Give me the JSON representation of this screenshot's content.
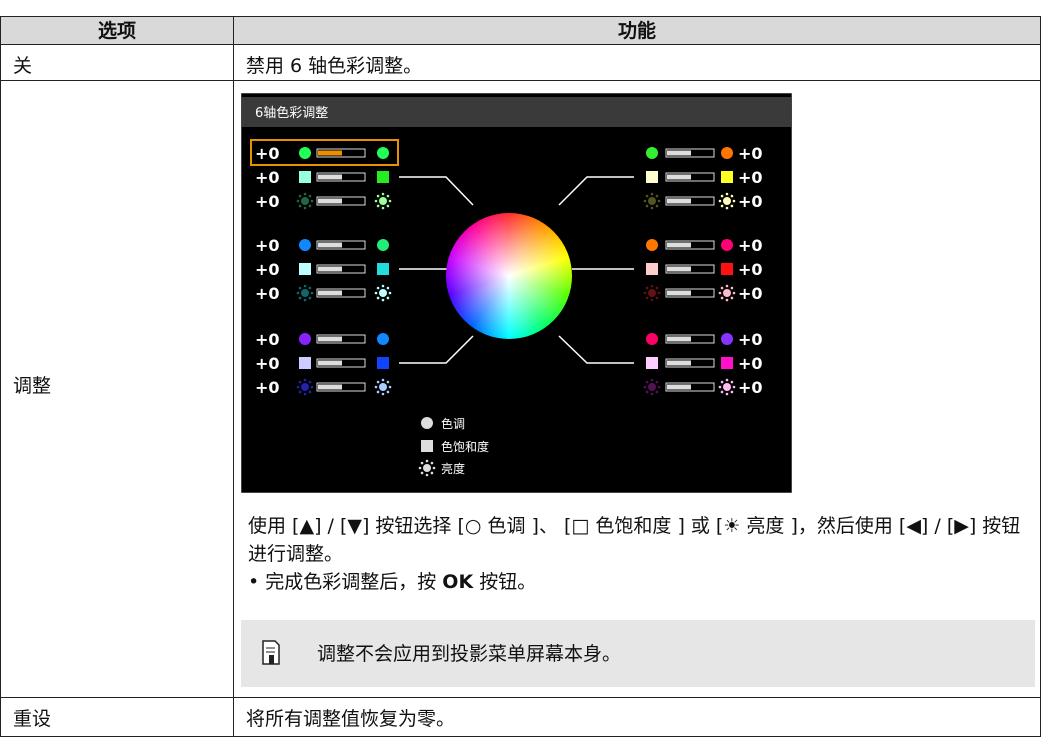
{
  "table": {
    "header": [
      "选项",
      "功能"
    ],
    "row_off": [
      "关",
      "禁用 6 轴色彩调整。"
    ],
    "row_adjust": {
      "option": "调整",
      "screen": {
        "title": "6轴色彩调整",
        "left_values": [
          "+0",
          "+0",
          "+0",
          "+0",
          "+0",
          "+0",
          "+0",
          "+0",
          "+0"
        ],
        "right_values": [
          "+0",
          "+0",
          "+0",
          "+0",
          "+0",
          "+0",
          "+0",
          "+0",
          "+0"
        ],
        "legend": [
          "色调",
          "色饱和度",
          "亮度"
        ]
      },
      "text": "使用 [▲] / [▼] 按钮选择 [○ 色调 ]、 [□ 色饱和度 ] 或 [☀ 亮度 ]，然后使用 [◀] / [▶] 按钮进行调整。",
      "bullet": [
        "完成色彩调整后，按 ",
        "OK",
        " 按钮。"
      ],
      "note": "调整不会应用到投影菜单屏幕本身。"
    },
    "row_reset": [
      "重设",
      "将所有调整值恢复为零。"
    ]
  }
}
